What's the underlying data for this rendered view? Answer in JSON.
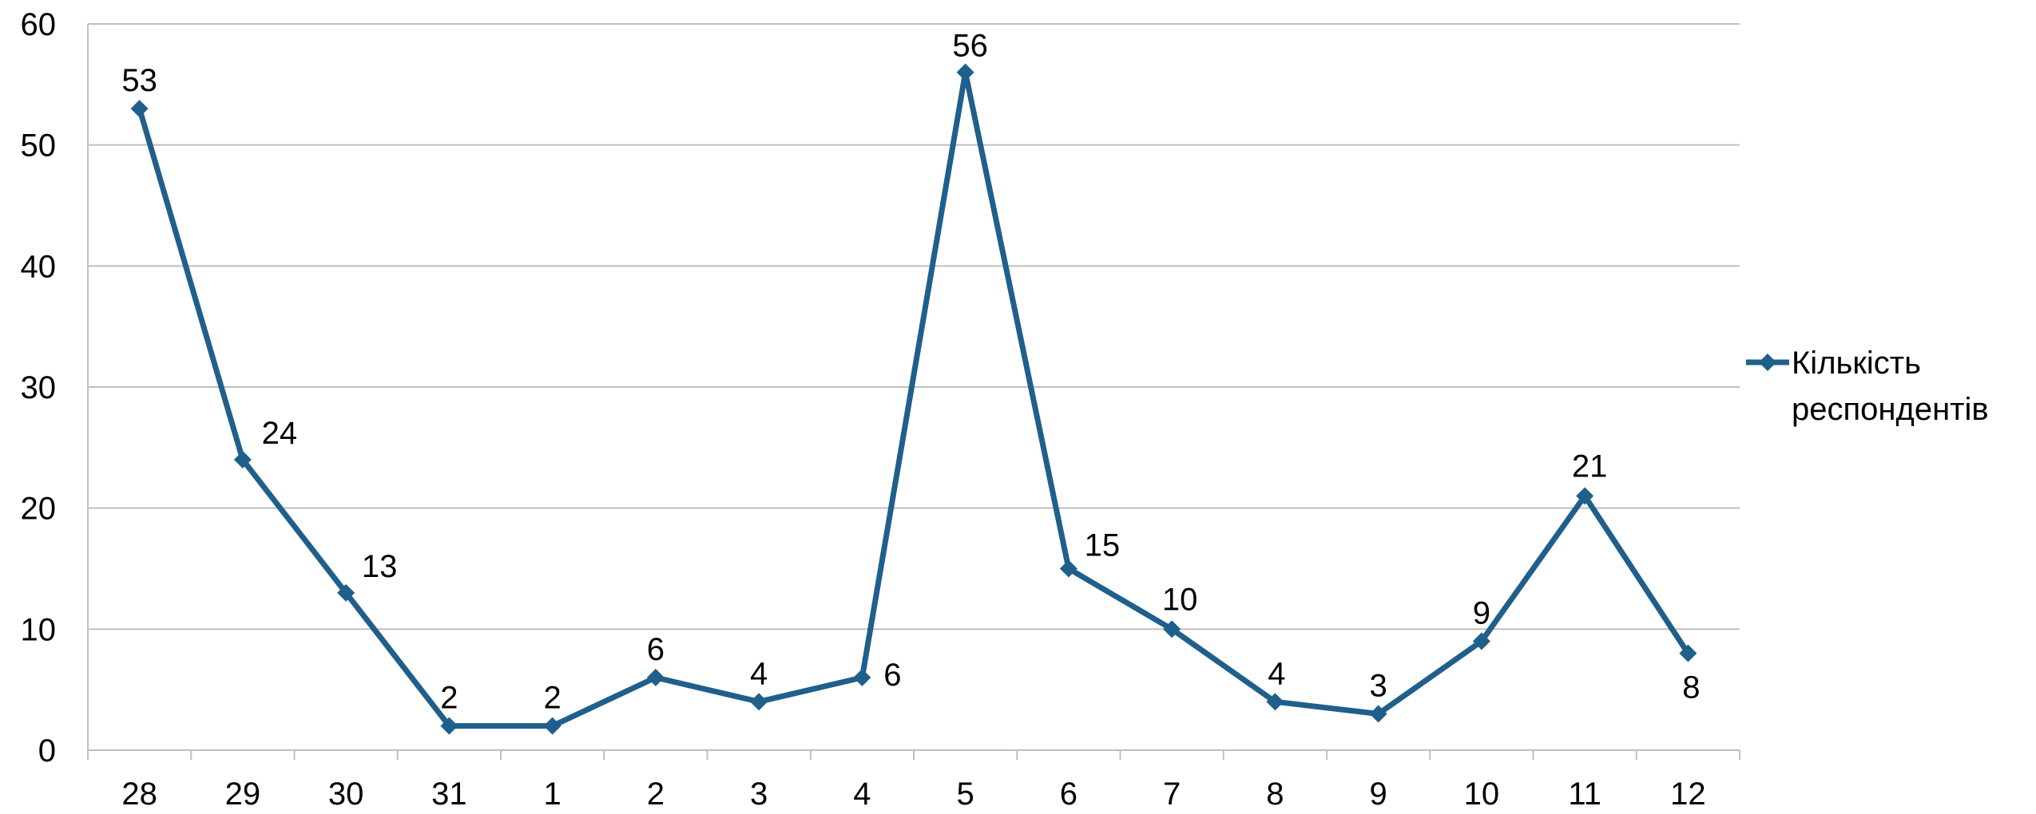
{
  "chart_data": {
    "type": "line",
    "title": "",
    "xlabel": "",
    "ylabel": "",
    "categories": [
      "28",
      "29",
      "30",
      "31",
      "1",
      "2",
      "3",
      "4",
      "5",
      "6",
      "7",
      "8",
      "9",
      "10",
      "11",
      "12"
    ],
    "series": [
      {
        "name": "Кількість респондентів",
        "values": [
          53,
          24,
          13,
          2,
          2,
          6,
          4,
          6,
          56,
          15,
          10,
          4,
          3,
          9,
          21,
          8
        ],
        "color": "#1F5F8B",
        "marker": "diamond"
      }
    ],
    "ylim": [
      0,
      60
    ],
    "yticks": [
      "0",
      "10",
      "20",
      "30",
      "40",
      "50",
      "60"
    ],
    "grid": "horizontal",
    "legend": {
      "position": "right",
      "lines": [
        "Кількість",
        "респондентів"
      ]
    }
  }
}
